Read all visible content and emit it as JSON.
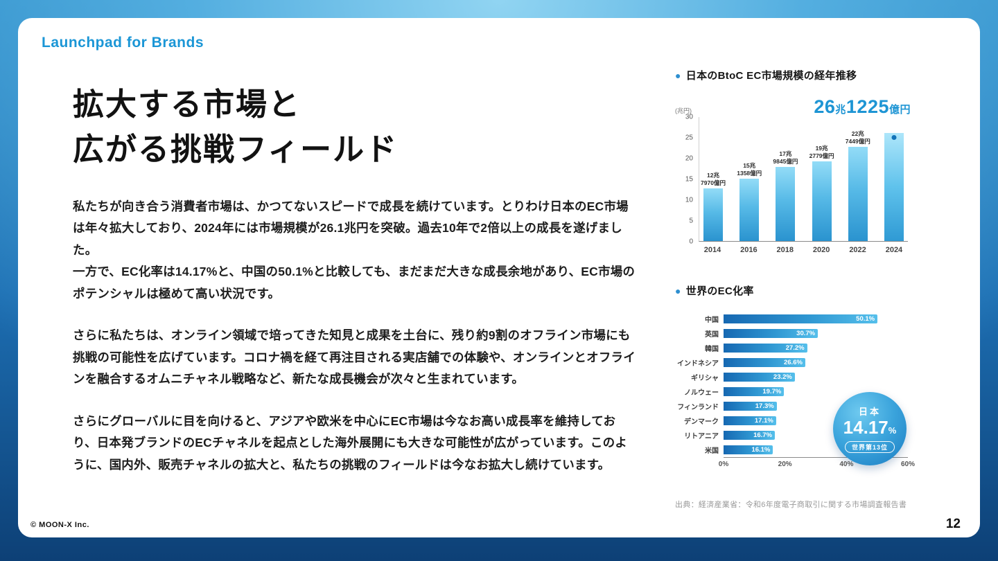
{
  "page": {
    "brand": "Launchpad for Brands",
    "copyright": "© MOON-X Inc.",
    "page_number": "12"
  },
  "icons": {
    "bullet": "●"
  },
  "main": {
    "title_line1": "拡大する市場と",
    "title_line2": "広がる挑戦フィールド",
    "paragraphs": [
      "私たちが向き合う消費者市場は、かつてないスピードで成長を続けています。とりわけ日本のEC市場は年々拡大しており、2024年には市場規模が26.1兆円を突破。過去10年で2倍以上の成長を遂げました。\n一方で、EC化率は14.17%と、中国の50.1%と比較しても、まだまだ大きな成長余地があり、EC市場のポテンシャルは極めて高い状況です。",
      "さらに私たちは、オンライン領域で培ってきた知見と成果を土台に、残り約9割のオフライン市場にも挑戦の可能性を広げています。コロナ禍を経て再注目される実店舗での体験や、オンラインとオフラインを融合するオムニチャネル戦略など、新たな成長機会が次々と生まれています。",
      "さらにグローバルに目を向けると、アジアや欧米を中心にEC市場は今なお高い成長率を維持しており、日本発ブランドのECチャネルを起点とした海外展開にも大きな可能性が広がっています。このように、国内外、販売チャネルの拡大と、私たちの挑戦のフィールドは今なお拡大し続けています。"
    ]
  },
  "chart_data": [
    {
      "type": "bar",
      "title": "日本のBtoC EC市場規模の経年推移",
      "unit_label": "(兆円)",
      "categories": [
        "2014",
        "2016",
        "2018",
        "2020",
        "2022",
        "2024"
      ],
      "values": [
        12.797,
        15.1358,
        17.9845,
        19.2779,
        22.7449,
        26.1225
      ],
      "bar_labels": [
        [
          "12兆",
          "7970億円"
        ],
        [
          "15兆",
          "1358億円"
        ],
        [
          "17兆",
          "9845億円"
        ],
        [
          "19兆",
          "2779億円"
        ],
        [
          "22兆",
          "7449億円"
        ],
        null
      ],
      "highlight": {
        "num1": "26",
        "unit1": "兆",
        "num2": "1225",
        "unit2": "億円"
      },
      "ylim": [
        0,
        30
      ],
      "yticks": [
        0,
        5,
        10,
        15,
        20,
        25,
        30
      ],
      "grid": false,
      "bar_color": "#3ba4dc"
    },
    {
      "type": "bar_horizontal",
      "title": "世界のEC化率",
      "categories": [
        "中国",
        "英国",
        "韓国",
        "インドネシア",
        "ギリシャ",
        "ノルウェー",
        "フィンランド",
        "デンマーク",
        "リトアニア",
        "米国"
      ],
      "values": [
        50.1,
        30.7,
        27.2,
        26.6,
        23.2,
        19.7,
        17.3,
        17.1,
        16.7,
        16.1
      ],
      "xlim": [
        0,
        60
      ],
      "xticks": [
        "0%",
        "20%",
        "40%",
        "60%"
      ],
      "grid": false,
      "bar_color": "#2f97d2",
      "japan_badge": {
        "label": "日本",
        "value": "14.17",
        "unit": "%",
        "rank": "世界第13位"
      },
      "source": "出典：経済産業省：令和6年度電子商取引に関する市場調査報告書"
    }
  ],
  "colors": {
    "accent_blue": "#1b96d6",
    "bar_gradient_light": "#93dcf7",
    "bar_gradient_dark": "#2a93cf",
    "background_blue": "#1d6fb3",
    "text_dark": "#161616"
  }
}
